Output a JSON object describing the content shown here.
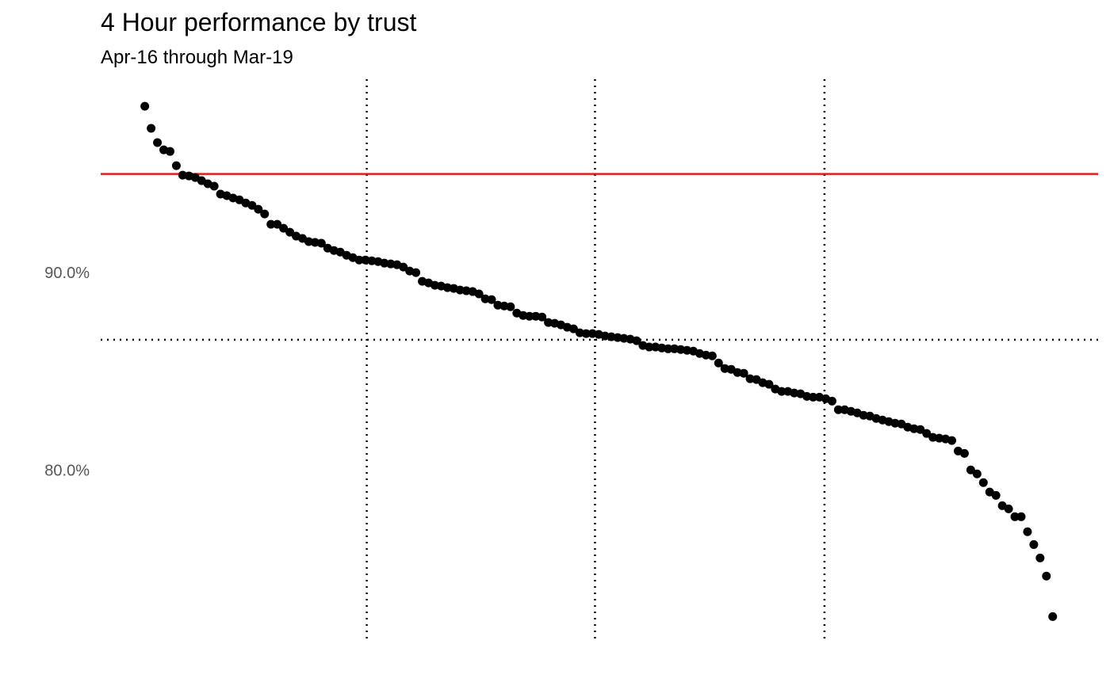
{
  "chart_data": {
    "type": "scatter",
    "title": "4 Hour performance by trust",
    "subtitle": "Apr-16 through Mar-19",
    "color": "#000000",
    "values": [
      98.43,
      97.31,
      96.59,
      96.22,
      96.14,
      95.42,
      94.94,
      94.9,
      94.82,
      94.66,
      94.5,
      94.38,
      93.98,
      93.9,
      93.78,
      93.69,
      93.53,
      93.41,
      93.21,
      92.97,
      92.45,
      92.45,
      92.25,
      92.05,
      91.85,
      91.73,
      91.57,
      91.53,
      91.49,
      91.24,
      91.12,
      91.04,
      90.88,
      90.76,
      90.64,
      90.64,
      90.6,
      90.56,
      90.48,
      90.44,
      90.4,
      90.28,
      90.08,
      90.0,
      89.56,
      89.48,
      89.36,
      89.32,
      89.24,
      89.2,
      89.12,
      89.08,
      89.04,
      88.92,
      88.67,
      88.63,
      88.35,
      88.31,
      88.27,
      87.95,
      87.83,
      87.79,
      87.79,
      87.75,
      87.47,
      87.43,
      87.35,
      87.23,
      87.15,
      86.95,
      86.91,
      86.91,
      86.87,
      86.79,
      86.75,
      86.71,
      86.67,
      86.63,
      86.55,
      86.31,
      86.23,
      86.23,
      86.18,
      86.14,
      86.14,
      86.1,
      86.06,
      86.02,
      85.9,
      85.82,
      85.78,
      85.42,
      85.14,
      85.1,
      84.94,
      84.9,
      84.62,
      84.58,
      84.42,
      84.34,
      84.1,
      83.98,
      83.98,
      83.9,
      83.86,
      83.73,
      83.69,
      83.69,
      83.61,
      83.49,
      83.05,
      83.05,
      82.97,
      82.89,
      82.77,
      82.73,
      82.61,
      82.53,
      82.45,
      82.37,
      82.33,
      82.17,
      82.09,
      82.05,
      81.85,
      81.65,
      81.61,
      81.57,
      81.49,
      80.96,
      80.84,
      80.0,
      79.8,
      79.36,
      78.88,
      78.71,
      78.19,
      78.03,
      77.63,
      77.63,
      76.87,
      76.22,
      75.54,
      74.62,
      72.57
    ],
    "xlim": [
      -6,
      152.2
    ],
    "ylim": [
      71.3,
      99.8
    ],
    "yticks": [
      {
        "value": 80,
        "label": "80.0%"
      },
      {
        "value": 90,
        "label": "90.0%"
      }
    ],
    "target_line": {
      "value": 95,
      "color": "#e41a1c"
    },
    "median_line": 86.6,
    "quartile_lines": [
      36.2,
      72.4,
      108.8
    ]
  }
}
